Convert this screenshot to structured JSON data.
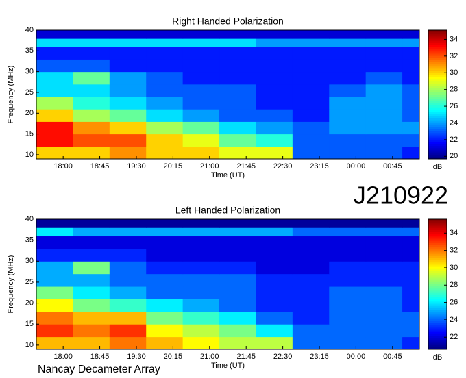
{
  "chart_data": [
    {
      "type": "heatmap",
      "title": "Right Handed Polarization",
      "xlabel": "Time (UT)",
      "ylabel": "Frequency (MHz)",
      "colormap": "jet",
      "colorbar_label": "dB",
      "xlim": [
        17.45,
        25.3
      ],
      "xticks": [
        {
          "value": 18,
          "label": "18:00"
        },
        {
          "value": 18.75,
          "label": "18:45"
        },
        {
          "value": 19.5,
          "label": "19:30"
        },
        {
          "value": 20.25,
          "label": "20:15"
        },
        {
          "value": 21,
          "label": "21:00"
        },
        {
          "value": 21.75,
          "label": "21:45"
        },
        {
          "value": 22.5,
          "label": "22:30"
        },
        {
          "value": 23.25,
          "label": "23:15"
        },
        {
          "value": 24,
          "label": "00:00"
        },
        {
          "value": 24.75,
          "label": "00:45"
        }
      ],
      "ylim": [
        9,
        40
      ],
      "yticks": [
        10,
        15,
        20,
        25,
        30,
        35,
        40
      ],
      "zlim": [
        19.7,
        35.1
      ],
      "zticks": [
        20,
        22,
        24,
        26,
        28,
        30,
        32,
        34
      ],
      "xbins": [
        17.45,
        18.2,
        18.95,
        19.7,
        20.45,
        21.2,
        21.95,
        22.7,
        23.45,
        24.2,
        24.95,
        25.3
      ],
      "ybins": [
        9,
        12,
        15,
        18,
        21,
        24,
        27,
        30,
        33,
        36,
        38,
        40
      ],
      "z": [
        [
          30,
          30,
          31,
          30,
          30,
          29,
          29,
          23,
          23,
          23,
          22
        ],
        [
          33,
          32,
          32,
          30,
          29,
          27,
          26,
          23,
          23,
          23,
          23
        ],
        [
          33,
          31,
          30,
          28,
          27,
          25,
          24,
          23,
          24,
          24,
          24
        ],
        [
          30,
          28,
          27,
          25,
          24,
          23,
          23,
          22,
          24,
          24,
          23
        ],
        [
          28,
          26,
          25,
          24,
          23,
          23,
          22,
          22,
          24,
          24,
          23
        ],
        [
          25,
          25,
          24,
          23,
          23,
          23,
          22,
          22,
          23,
          24,
          23
        ],
        [
          25,
          27,
          24,
          23,
          22,
          22,
          22,
          22,
          22,
          23,
          22
        ],
        [
          23,
          23,
          22,
          22,
          22,
          22,
          22,
          22,
          22,
          22,
          22
        ],
        [
          22,
          22,
          22,
          22,
          22,
          22,
          22,
          22,
          22,
          22,
          22
        ],
        [
          25,
          25,
          25,
          25,
          25,
          25,
          24,
          24,
          24,
          24,
          24
        ],
        [
          21,
          21,
          21,
          21,
          21,
          21,
          21,
          21,
          21,
          21,
          21
        ]
      ]
    },
    {
      "type": "heatmap",
      "title": "Left Handed Polarization",
      "xlabel": "Time (UT)",
      "ylabel": "Frequency (MHz)",
      "colormap": "jet",
      "colorbar_label": "dB",
      "xlim": [
        17.45,
        25.3
      ],
      "xticks": [
        {
          "value": 18,
          "label": "18:00"
        },
        {
          "value": 18.75,
          "label": "18:45"
        },
        {
          "value": 19.5,
          "label": "19:30"
        },
        {
          "value": 20.25,
          "label": "20:15"
        },
        {
          "value": 21,
          "label": "21:00"
        },
        {
          "value": 21.75,
          "label": "21:45"
        },
        {
          "value": 22.5,
          "label": "22:30"
        },
        {
          "value": 23.25,
          "label": "23:15"
        },
        {
          "value": 24,
          "label": "00:00"
        },
        {
          "value": 24.75,
          "label": "00:45"
        }
      ],
      "ylim": [
        9,
        40
      ],
      "yticks": [
        10,
        15,
        20,
        25,
        30,
        35,
        40
      ],
      "zlim": [
        20.6,
        35.6
      ],
      "zticks": [
        22,
        24,
        26,
        28,
        30,
        32,
        34
      ],
      "xbins": [
        17.45,
        18.2,
        18.95,
        19.7,
        20.45,
        21.2,
        21.95,
        22.7,
        23.45,
        24.2,
        24.95,
        25.3
      ],
      "ybins": [
        9,
        12,
        15,
        18,
        21,
        24,
        27,
        30,
        33,
        36,
        38,
        40
      ],
      "z": [
        [
          31,
          31,
          32,
          31,
          30,
          29,
          29,
          24,
          24,
          24,
          23
        ],
        [
          33,
          32,
          33,
          30,
          29,
          28,
          26,
          24,
          24,
          24,
          24
        ],
        [
          32,
          31,
          31,
          28,
          27,
          26,
          24,
          23,
          24,
          24,
          24
        ],
        [
          30,
          28,
          27,
          26,
          25,
          24,
          23,
          23,
          24,
          24,
          23
        ],
        [
          28,
          26,
          25,
          24,
          24,
          24,
          23,
          23,
          24,
          24,
          23
        ],
        [
          25,
          25,
          24,
          24,
          24,
          24,
          23,
          23,
          23,
          23,
          23
        ],
        [
          25,
          28,
          24,
          23,
          23,
          23,
          22,
          22,
          23,
          23,
          23
        ],
        [
          23,
          23,
          23,
          22,
          22,
          22,
          22,
          22,
          22,
          22,
          22
        ],
        [
          22,
          22,
          22,
          22,
          22,
          22,
          22,
          22,
          22,
          22,
          22
        ],
        [
          26,
          25,
          25,
          25,
          25,
          25,
          25,
          24,
          24,
          24,
          24
        ],
        [
          21,
          21,
          21,
          21,
          21,
          21,
          21,
          21,
          21,
          21,
          21
        ]
      ]
    }
  ],
  "annotations": {
    "observation_id": "J210922",
    "instrument": "Nancay Decameter Array"
  }
}
